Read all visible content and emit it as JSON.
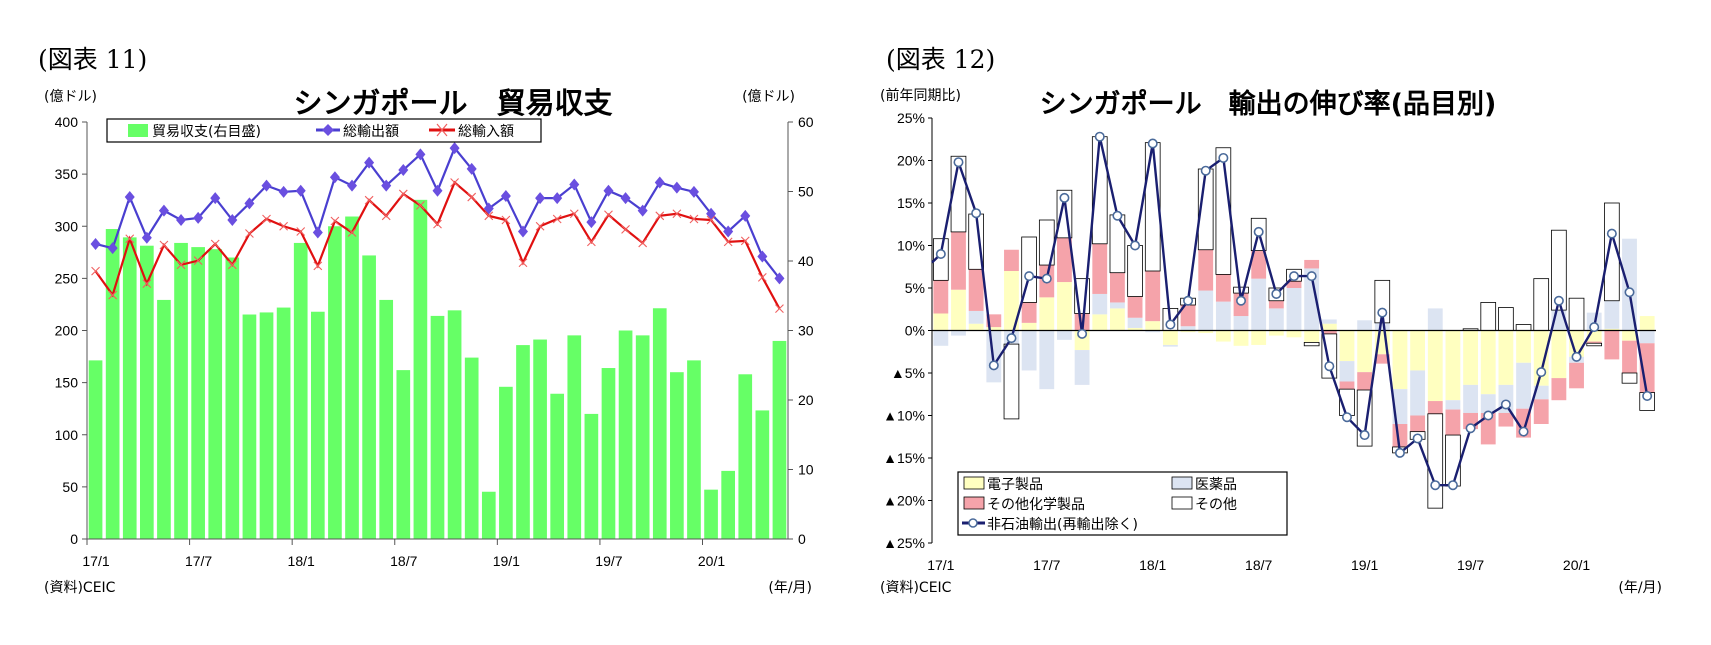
{
  "figures": [
    {
      "label": "(図表 11)",
      "source": "(資料)CEIC",
      "x_unit": "(年/月)"
    },
    {
      "label": "(図表 12)",
      "source": "(資料)CEIC",
      "x_unit": "(年/月)"
    }
  ],
  "chart_data": [
    {
      "type": "bar+line",
      "title": "シンガポール　貿易収支",
      "ylabel_left": "(億ドル)",
      "ylabel_right": "(億ドル)",
      "xlabel": "(年/月)",
      "ylim_left": [
        0,
        400
      ],
      "yticks_left": [
        0,
        50,
        100,
        150,
        200,
        250,
        300,
        350,
        400
      ],
      "ylim_right": [
        0,
        60
      ],
      "yticks_right": [
        0,
        10,
        20,
        30,
        40,
        50,
        60
      ],
      "x_tick_labels": [
        "17/1",
        "17/7",
        "18/1",
        "18/7",
        "19/1",
        "19/7",
        "20/1"
      ],
      "x_start": "2017/1",
      "x_end": "2020/5",
      "legend_position": "top",
      "grid": false,
      "series": [
        {
          "name": "貿易収支(右目盛)",
          "type": "bar",
          "axis": "right",
          "color": "#66ff66",
          "values": [
            25.7,
            44.6,
            43.4,
            42.2,
            34.4,
            42.6,
            42.0,
            41.7,
            40.5,
            32.3,
            32.6,
            33.3,
            42.6,
            32.7,
            45.0,
            46.4,
            40.8,
            34.4,
            24.3,
            48.8,
            32.1,
            32.9,
            26.1,
            6.8,
            21.9,
            27.9,
            28.7,
            20.9,
            29.3,
            18.0,
            24.6,
            30.0,
            29.3,
            33.2,
            24.0,
            25.7,
            7.1,
            9.8,
            23.7,
            18.5,
            28.5
          ]
        },
        {
          "name": "総輸出額",
          "type": "line",
          "axis": "left",
          "color": "#4a3fd0",
          "marker": "diamond",
          "values": [
            283,
            279,
            328,
            289,
            315,
            306,
            308,
            327,
            306,
            322,
            339,
            333,
            334,
            294,
            347,
            339,
            361,
            339,
            354,
            369,
            334,
            375,
            355,
            317,
            329,
            295,
            327,
            327,
            340,
            304,
            334,
            327,
            315,
            342,
            337,
            333,
            312,
            295,
            310,
            271,
            250
          ]
        },
        {
          "name": "総輸入額",
          "type": "line",
          "axis": "left",
          "color": "#e01010",
          "marker": "x",
          "values": [
            257,
            234,
            288,
            245,
            282,
            263,
            267,
            283,
            263,
            293,
            307,
            300,
            295,
            262,
            305,
            294,
            325,
            310,
            331,
            320,
            302,
            342,
            328,
            310,
            306,
            265,
            300,
            307,
            312,
            285,
            311,
            297,
            284,
            310,
            312,
            307,
            306,
            285,
            286,
            251,
            221
          ]
        }
      ]
    },
    {
      "type": "stacked-bar+line",
      "title": "シンガポール　輸出の伸び率(品目別)",
      "ylabel": "(前年同期比)",
      "xlabel": "(年/月)",
      "ylim": [
        -25,
        25
      ],
      "yticks": [
        "▲25%",
        "▲20%",
        "▲15%",
        "▲10%",
        "▲5%",
        "0%",
        "5%",
        "10%",
        "15%",
        "20%",
        "25%"
      ],
      "x_tick_labels": [
        "17/1",
        "17/7",
        "18/1",
        "18/7",
        "19/1",
        "19/7",
        "20/1"
      ],
      "x_start": "2017/1",
      "x_end": "2020/5",
      "legend_position": "bottom-left",
      "grid": false,
      "series": [
        {
          "name": "電子製品",
          "type": "bar",
          "color": "#ffffc0",
          "values": [
            2.0,
            4.8,
            0.8,
            0.4,
            7.0,
            0.9,
            3.9,
            5.7,
            -2.3,
            1.9,
            2.6,
            0.3,
            1.1,
            -1.7,
            -0.2,
            -0.3,
            -1.3,
            -1.8,
            -1.7,
            -0.6,
            -0.8,
            -1.4,
            0.8,
            -3.6,
            -4.9,
            -2.8,
            -6.9,
            -4.7,
            -8.3,
            -8.2,
            -6.4,
            -7.5,
            -6.4,
            -3.8,
            -6.5,
            -5.6,
            -3.1,
            -1.3,
            0.2,
            -1.2,
            1.7
          ]
        },
        {
          "name": "医薬品",
          "type": "bar",
          "color": "#dce4f2",
          "values": [
            -1.8,
            -0.6,
            1.5,
            -6.1,
            -1.6,
            -4.7,
            -6.9,
            -1.1,
            -4.1,
            2.4,
            0.7,
            1.2,
            -0.2,
            -0.2,
            0.5,
            4.7,
            3.4,
            1.7,
            6.1,
            2.6,
            5.0,
            7.3,
            0.5,
            -2.4,
            1.2,
            0.9,
            -4.1,
            -5.3,
            2.6,
            -1.1,
            -3.3,
            -2.2,
            -3.3,
            -5.4,
            -1.6,
            2.4,
            -0.7,
            2.1,
            3.3,
            10.8,
            -1.5
          ]
        },
        {
          "name": "その他化学製品",
          "type": "bar",
          "color": "#f5a3aa",
          "values": [
            3.9,
            6.8,
            4.9,
            1.5,
            2.5,
            2.4,
            3.8,
            5.2,
            2.0,
            5.9,
            3.5,
            2.5,
            5.9,
            0.0,
            2.5,
            4.8,
            3.2,
            2.7,
            3.3,
            0.9,
            0.8,
            1.0,
            -0.4,
            -0.9,
            -2.1,
            -1.1,
            -2.7,
            -1.9,
            -1.5,
            -3.0,
            -1.9,
            -3.7,
            -1.6,
            -3.4,
            -2.9,
            -2.6,
            -3.0,
            -0.2,
            -3.4,
            -3.8,
            -5.8
          ]
        },
        {
          "name": "その他",
          "type": "bar",
          "color": "#ffffff",
          "values": [
            4.9,
            8.9,
            6.5,
            0.0,
            -8.8,
            7.7,
            5.3,
            5.6,
            4.1,
            12.6,
            6.8,
            6.0,
            15.1,
            2.6,
            0.8,
            9.5,
            14.9,
            0.7,
            3.8,
            1.5,
            1.4,
            -0.4,
            -5.2,
            -3.1,
            -6.6,
            5.0,
            -0.7,
            -0.9,
            -11.1,
            -6.0,
            0.2,
            3.3,
            2.7,
            0.7,
            6.1,
            9.4,
            3.8,
            -0.3,
            11.5,
            -1.2,
            -2.1
          ]
        },
        {
          "name": "非石油輸出(再輸出除く)",
          "type": "line",
          "color": "#1a1f70",
          "marker": "circle",
          "values": [
            9.0,
            19.8,
            13.8,
            -4.1,
            -0.9,
            6.4,
            6.1,
            15.6,
            -0.4,
            22.8,
            13.5,
            10.0,
            22.0,
            0.7,
            3.5,
            18.8,
            20.3,
            3.5,
            11.6,
            4.3,
            6.4,
            6.4,
            -4.2,
            -10.2,
            -12.3,
            2.1,
            -14.4,
            -12.7,
            -18.2,
            -18.2,
            -11.5,
            -10.0,
            -8.7,
            -11.9,
            -4.9,
            3.5,
            -3.1,
            0.4,
            11.4,
            4.5,
            -7.7
          ]
        }
      ]
    }
  ]
}
